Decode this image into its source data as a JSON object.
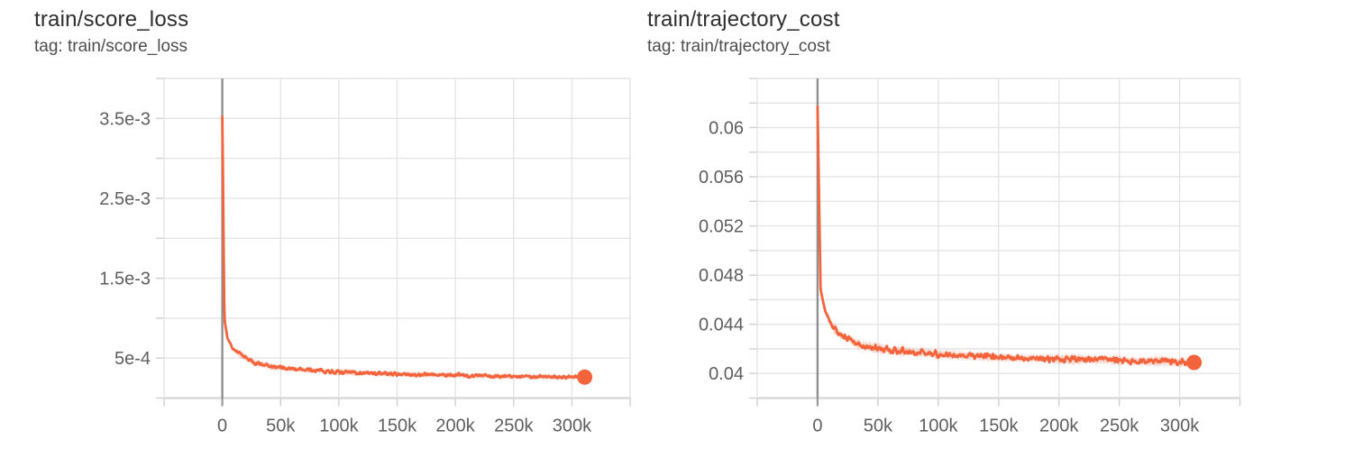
{
  "page": {
    "background": "#ffffff"
  },
  "colors": {
    "line": "#f4643c",
    "band_opacity": 0.25,
    "gridline": "#e4e4e4",
    "baseline": "#d9d9d9",
    "zero_line": "#8f8f8f",
    "tick": "#cfcfcf",
    "zero_tick": "#9a9a9a",
    "tick_label": "#5e5e5e",
    "title": "#2e2e2e",
    "tag": "#4d4d4d"
  },
  "chart_data": [
    {
      "type": "line",
      "title": "train/score_loss",
      "tag": "tag: train/score_loss",
      "xlim": [
        -50000,
        350000
      ],
      "x_grid_step": 50000,
      "x_ticks": [
        {
          "value": 0,
          "label": "0"
        },
        {
          "value": 50000,
          "label": "50k"
        },
        {
          "value": 100000,
          "label": "100k"
        },
        {
          "value": 150000,
          "label": "150k"
        },
        {
          "value": 200000,
          "label": "200k"
        },
        {
          "value": 250000,
          "label": "250k"
        },
        {
          "value": 300000,
          "label": "300k"
        }
      ],
      "ylim": [
        0,
        0.004
      ],
      "y_grid_step": 0.0005,
      "y_ticks": [
        {
          "value": 0.0035,
          "label": "3.5e-3"
        },
        {
          "value": 0.0025,
          "label": "2.5e-3"
        },
        {
          "value": 0.0015,
          "label": "1.5e-3"
        },
        {
          "value": 0.0005,
          "label": "5e-4"
        }
      ],
      "grid": true,
      "legend": false,
      "series": [
        {
          "name": "train",
          "color": "#f4643c",
          "keypoints": [
            [
              0,
              0.00352
            ],
            [
              1800,
              0.00098
            ],
            [
              4500,
              0.00075
            ],
            [
              9000,
              0.00062
            ],
            [
              16000,
              0.00054
            ],
            [
              28000,
              0.00044
            ],
            [
              45000,
              0.000385
            ],
            [
              65000,
              0.00036
            ],
            [
              100000,
              0.000325
            ],
            [
              150000,
              0.0003
            ],
            [
              200000,
              0.000285
            ],
            [
              250000,
              0.000272
            ],
            [
              311000,
              0.000262
            ]
          ],
          "noise": 2e-05,
          "band": 4.2e-05,
          "last_point": {
            "step": 311000,
            "value": 0.000262
          }
        }
      ]
    },
    {
      "type": "line",
      "title": "train/trajectory_cost",
      "tag": "tag: train/trajectory_cost",
      "xlim": [
        -50000,
        350000
      ],
      "x_grid_step": 50000,
      "x_ticks": [
        {
          "value": 0,
          "label": "0"
        },
        {
          "value": 50000,
          "label": "50k"
        },
        {
          "value": 100000,
          "label": "100k"
        },
        {
          "value": 150000,
          "label": "150k"
        },
        {
          "value": 200000,
          "label": "200k"
        },
        {
          "value": 250000,
          "label": "250k"
        },
        {
          "value": 300000,
          "label": "300k"
        }
      ],
      "ylim": [
        0.038,
        0.064
      ],
      "y_grid_step": 0.002,
      "y_ticks": [
        {
          "value": 0.06,
          "label": "0.06"
        },
        {
          "value": 0.056,
          "label": "0.056"
        },
        {
          "value": 0.052,
          "label": "0.052"
        },
        {
          "value": 0.048,
          "label": "0.048"
        },
        {
          "value": 0.044,
          "label": "0.044"
        },
        {
          "value": 0.04,
          "label": "0.04"
        }
      ],
      "grid": true,
      "legend": false,
      "series": [
        {
          "name": "train",
          "color": "#f4643c",
          "keypoints": [
            [
              0,
              0.0617
            ],
            [
              2500,
              0.0468
            ],
            [
              6000,
              0.0452
            ],
            [
              11000,
              0.0441
            ],
            [
              18000,
              0.0432
            ],
            [
              33000,
              0.0424
            ],
            [
              60000,
              0.0419
            ],
            [
              100000,
              0.0416
            ],
            [
              150000,
              0.0413
            ],
            [
              200000,
              0.0412
            ],
            [
              250000,
              0.0411
            ],
            [
              312000,
              0.0409
            ]
          ],
          "noise": 0.00022,
          "band": 0.00045,
          "last_point": {
            "step": 312000,
            "value": 0.0409
          }
        }
      ]
    }
  ]
}
